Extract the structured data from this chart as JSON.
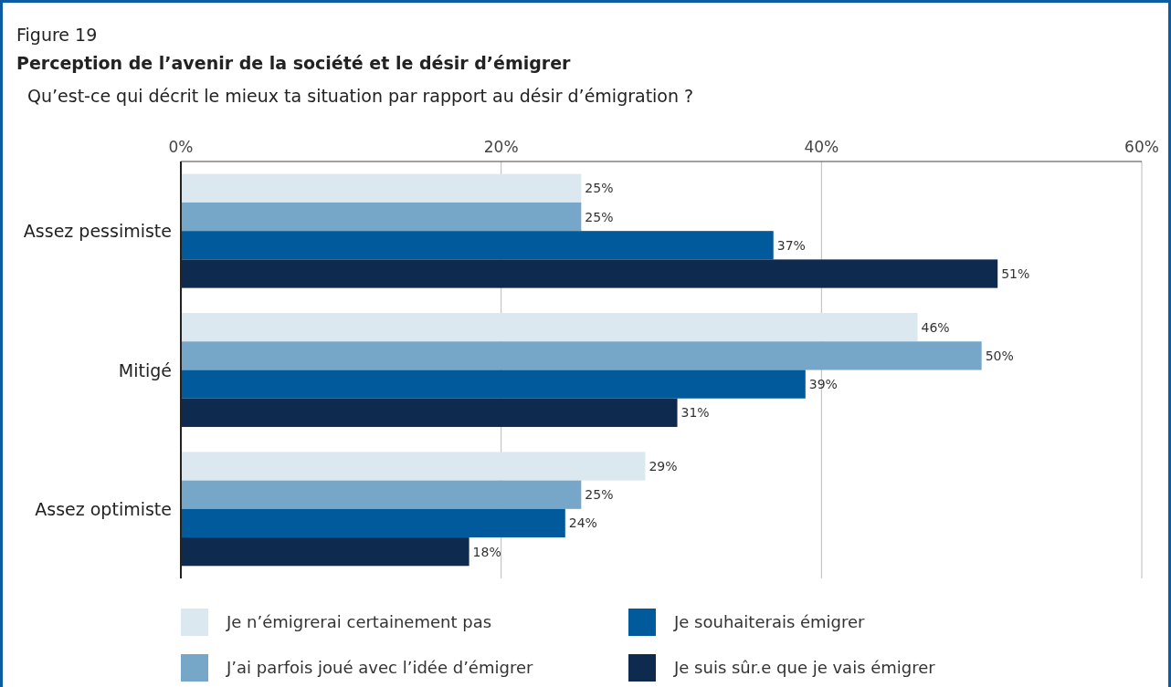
{
  "chart_data": {
    "type": "bar",
    "orientation": "horizontal",
    "title": "Perception de l’avenir de la société et le désir d’émigrer",
    "subtitle": "Qu’est-ce qui décrit le mieux ta situation par rapport au désir d’émigration ?",
    "annotations": [
      "Figure 19"
    ],
    "categories": [
      "Assez pessimiste",
      "Mitigé",
      "Assez optimiste"
    ],
    "series": [
      {
        "name": "Je n’émigrerai certainement pas",
        "color": "#dce8f0",
        "values": [
          25,
          46,
          29
        ],
        "value_labels": [
          "25%",
          "46%",
          "29%"
        ]
      },
      {
        "name": "J’ai parfois joué avec l’idée d’émigrer",
        "color": "#76a7c9",
        "values": [
          25,
          50,
          25
        ],
        "value_labels": [
          "25%",
          "50%",
          "25%"
        ]
      },
      {
        "name": "Je souhaiterais émigrer",
        "color": "#005a9c",
        "values": [
          37,
          39,
          24
        ],
        "value_labels": [
          "37%",
          "39%",
          "24%"
        ]
      },
      {
        "name": "Je suis sûr.e que je vais émigrer",
        "color": "#0e2b4f",
        "values": [
          51,
          31,
          18
        ],
        "value_labels": [
          "51%",
          "31%",
          "18%"
        ]
      }
    ],
    "xlim": [
      0,
      60
    ],
    "xticks": [
      {
        "value": 0,
        "label": "0%"
      },
      {
        "value": 20,
        "label": "20%"
      },
      {
        "value": 40,
        "label": "40%"
      },
      {
        "value": 60,
        "label": "60%"
      }
    ],
    "grid": "x",
    "legend": "bottom"
  }
}
